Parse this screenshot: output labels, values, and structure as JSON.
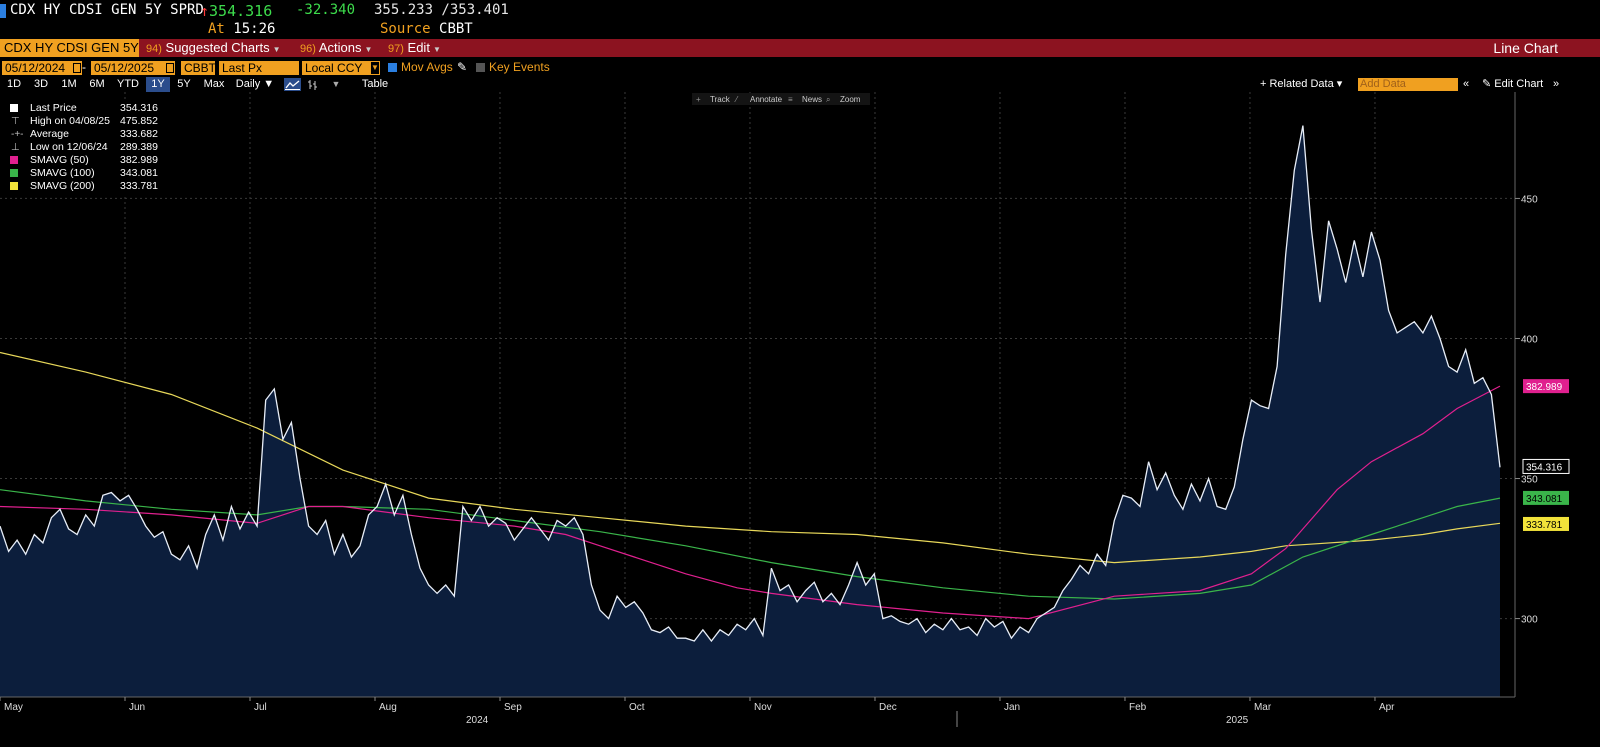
{
  "header": {
    "ticker": "CDX HY CDSI GEN 5Y SPRD",
    "last_arrow": "↑",
    "last_price": "354.316",
    "change": "-32.340",
    "high_low": "355.233 /353.401",
    "at_label": "At",
    "at_time": "15:26",
    "source_label": "Source",
    "source_value": "CBBT"
  },
  "menu": {
    "security": "CDX HY CDSI GEN 5Y",
    "suggested_num": "94)",
    "suggested": "Suggested Charts",
    "actions_num": "96)",
    "actions": "Actions",
    "edit_num": "97)",
    "edit": "Edit",
    "chart_type": "Line Chart"
  },
  "options": {
    "start_date": "05/12/2024",
    "end_date": "05/12/2025",
    "date_sep": "-",
    "pricing_source": "CBBT",
    "field": "Last Px",
    "currency": "Local CCY",
    "mov_avgs_label": "Mov Avgs",
    "key_events_label": "Key Events",
    "colors": {
      "checked": "#2b7fe0",
      "unchecked": "#555555"
    }
  },
  "periods": {
    "items": [
      "1D",
      "3D",
      "1M",
      "6M",
      "YTD",
      "1Y",
      "5Y",
      "Max"
    ],
    "active": "1Y",
    "frequency": "Daily ▼",
    "table_label": "Table",
    "related_data": "+ Related Data ▾",
    "add_data_placeholder": "Add Data",
    "edit_chart": "Edit Chart",
    "chevrons_left": "«",
    "chevrons_right": "»"
  },
  "chart_tools": [
    "Track",
    "Annotate",
    "News",
    "Zoom"
  ],
  "legend": [
    {
      "name": "Last Price",
      "value": "354.316",
      "color": "#ffffff",
      "glyph": ""
    },
    {
      "name": "High on 04/08/25",
      "value": "475.852",
      "color": "",
      "glyph": "⊤"
    },
    {
      "name": "Average",
      "value": "333.682",
      "color": "",
      "glyph": "-+-"
    },
    {
      "name": "Low on 12/06/24",
      "value": "289.389",
      "color": "",
      "glyph": "⊥"
    },
    {
      "name": "SMAVG (50)",
      "value": "382.989",
      "color": "#e0208f",
      "glyph": ""
    },
    {
      "name": "SMAVG (100)",
      "value": "343.081",
      "color": "#3ab54a",
      "glyph": ""
    },
    {
      "name": "SMAVG (200)",
      "value": "333.781",
      "color": "#f2e33a",
      "glyph": ""
    }
  ],
  "chart_data": {
    "type": "line",
    "x_axis_labels": [
      "May",
      "Jun",
      "Jul",
      "Aug",
      "Sep",
      "Oct",
      "Nov",
      "Dec",
      "Jan",
      "Feb",
      "Mar",
      "Apr"
    ],
    "year_labels": [
      "2024",
      "2025"
    ],
    "y_ticks": [
      300,
      350,
      400,
      450
    ],
    "ylim": [
      272,
      488
    ],
    "grid": true,
    "colors": {
      "price_line": "#e8eef8",
      "price_fill": "#0c1e3c",
      "sma50": "#e0208f",
      "sma100": "#3ab54a",
      "sma200": "#e8d85a",
      "grid": "#3a3a3a"
    },
    "end_labels": [
      {
        "value": "382.989",
        "series": "sma50",
        "bg": "#e0208f",
        "fg": "#ffffff"
      },
      {
        "value": "354.316",
        "series": "price",
        "bg": "#000000",
        "fg": "#ffffff",
        "border": "#ffffff"
      },
      {
        "value": "343.081",
        "series": "sma100",
        "bg": "#3ab54a",
        "fg": "#000000"
      },
      {
        "value": "333.781",
        "series": "sma200",
        "bg": "#f2e33a",
        "fg": "#000000"
      }
    ],
    "series": [
      {
        "key": "price",
        "name": "Last Price",
        "points": [
          [
            0,
            333
          ],
          [
            0.1,
            324
          ],
          [
            0.2,
            328
          ],
          [
            0.3,
            323
          ],
          [
            0.4,
            330
          ],
          [
            0.5,
            327
          ],
          [
            0.6,
            336
          ],
          [
            0.7,
            339
          ],
          [
            0.8,
            332
          ],
          [
            0.9,
            330
          ],
          [
            1.0,
            337
          ],
          [
            1.1,
            333
          ],
          [
            1.2,
            344
          ],
          [
            1.3,
            345
          ],
          [
            1.4,
            342
          ],
          [
            1.5,
            344
          ],
          [
            1.6,
            339
          ],
          [
            1.7,
            333
          ],
          [
            1.8,
            329
          ],
          [
            1.9,
            331
          ],
          [
            2.0,
            323
          ],
          [
            2.1,
            321
          ],
          [
            2.2,
            326
          ],
          [
            2.3,
            318
          ],
          [
            2.4,
            330
          ],
          [
            2.5,
            337
          ],
          [
            2.6,
            328
          ],
          [
            2.7,
            340
          ],
          [
            2.8,
            332
          ],
          [
            2.9,
            338
          ],
          [
            3.0,
            333
          ],
          [
            3.1,
            378
          ],
          [
            3.2,
            382
          ],
          [
            3.3,
            364
          ],
          [
            3.4,
            370
          ],
          [
            3.5,
            350
          ],
          [
            3.6,
            333
          ],
          [
            3.7,
            330
          ],
          [
            3.8,
            335
          ],
          [
            3.9,
            323
          ],
          [
            4.0,
            330
          ],
          [
            4.1,
            322
          ],
          [
            4.2,
            326
          ],
          [
            4.3,
            337
          ],
          [
            4.4,
            340
          ],
          [
            4.5,
            348
          ],
          [
            4.6,
            337
          ],
          [
            4.7,
            344
          ],
          [
            4.8,
            330
          ],
          [
            4.9,
            318
          ],
          [
            5.0,
            312
          ],
          [
            5.1,
            309
          ],
          [
            5.2,
            312
          ],
          [
            5.3,
            308
          ],
          [
            5.4,
            340
          ],
          [
            5.5,
            335
          ],
          [
            5.6,
            340
          ],
          [
            5.7,
            333
          ],
          [
            5.8,
            336
          ],
          [
            5.9,
            334
          ],
          [
            6.0,
            328
          ],
          [
            6.1,
            332
          ],
          [
            6.2,
            336
          ],
          [
            6.3,
            332
          ],
          [
            6.4,
            328
          ],
          [
            6.5,
            335
          ],
          [
            6.6,
            333
          ],
          [
            6.7,
            336
          ],
          [
            6.8,
            330
          ],
          [
            6.9,
            312
          ],
          [
            7.0,
            303
          ],
          [
            7.1,
            300
          ],
          [
            7.2,
            308
          ],
          [
            7.3,
            304
          ],
          [
            7.4,
            306
          ],
          [
            7.5,
            302
          ],
          [
            7.6,
            296
          ],
          [
            7.7,
            295
          ],
          [
            7.8,
            297
          ],
          [
            7.9,
            293
          ],
          [
            8.0,
            293
          ],
          [
            8.1,
            292
          ],
          [
            8.2,
            296
          ],
          [
            8.3,
            292
          ],
          [
            8.4,
            296
          ],
          [
            8.5,
            294
          ],
          [
            8.6,
            298
          ],
          [
            8.7,
            296
          ],
          [
            8.8,
            300
          ],
          [
            8.9,
            294
          ],
          [
            9.0,
            318
          ],
          [
            9.1,
            310
          ],
          [
            9.2,
            312
          ],
          [
            9.3,
            306
          ],
          [
            9.4,
            310
          ],
          [
            9.5,
            313
          ],
          [
            9.6,
            306
          ],
          [
            9.7,
            309
          ],
          [
            9.8,
            305
          ],
          [
            9.9,
            312
          ],
          [
            10.0,
            320
          ],
          [
            10.1,
            312
          ],
          [
            10.2,
            316
          ],
          [
            10.3,
            300
          ],
          [
            10.4,
            301
          ],
          [
            10.5,
            299
          ],
          [
            10.6,
            298
          ],
          [
            10.7,
            300
          ],
          [
            10.8,
            295
          ],
          [
            10.9,
            298
          ],
          [
            11.0,
            296
          ],
          [
            11.1,
            300
          ],
          [
            11.2,
            296
          ],
          [
            11.3,
            297
          ],
          [
            11.4,
            294
          ],
          [
            11.5,
            300
          ],
          [
            11.6,
            297
          ],
          [
            11.7,
            299
          ],
          [
            11.8,
            293
          ],
          [
            11.9,
            297
          ],
          [
            12.0,
            295
          ],
          [
            12.1,
            300
          ],
          [
            12.2,
            302
          ],
          [
            12.3,
            304
          ],
          [
            12.4,
            310
          ],
          [
            12.5,
            314
          ],
          [
            12.6,
            319
          ],
          [
            12.7,
            316
          ],
          [
            12.8,
            323
          ],
          [
            12.9,
            319
          ],
          [
            13.0,
            335
          ],
          [
            13.1,
            344
          ],
          [
            13.2,
            343
          ],
          [
            13.3,
            340
          ],
          [
            13.4,
            356
          ],
          [
            13.5,
            346
          ],
          [
            13.6,
            352
          ],
          [
            13.7,
            344
          ],
          [
            13.8,
            339
          ],
          [
            13.9,
            348
          ],
          [
            14.0,
            342
          ],
          [
            14.1,
            350
          ],
          [
            14.2,
            340
          ],
          [
            14.3,
            339
          ],
          [
            14.4,
            347
          ],
          [
            14.5,
            364
          ],
          [
            14.6,
            378
          ],
          [
            14.7,
            376
          ],
          [
            14.8,
            375
          ],
          [
            14.9,
            390
          ],
          [
            15.0,
            430
          ],
          [
            15.1,
            460
          ],
          [
            15.2,
            476
          ],
          [
            15.3,
            439
          ],
          [
            15.4,
            413
          ],
          [
            15.5,
            442
          ],
          [
            15.6,
            432
          ],
          [
            15.7,
            420
          ],
          [
            15.8,
            435
          ],
          [
            15.9,
            422
          ],
          [
            16.0,
            438
          ],
          [
            16.1,
            428
          ],
          [
            16.2,
            410
          ],
          [
            16.3,
            402
          ],
          [
            16.4,
            404
          ],
          [
            16.5,
            406
          ],
          [
            16.6,
            402
          ],
          [
            16.7,
            408
          ],
          [
            16.8,
            400
          ],
          [
            16.9,
            390
          ],
          [
            17.0,
            388
          ],
          [
            17.1,
            396
          ],
          [
            17.2,
            384
          ],
          [
            17.3,
            386
          ],
          [
            17.4,
            380
          ],
          [
            17.5,
            354
          ]
        ]
      },
      {
        "key": "sma50",
        "name": "SMAVG (50)",
        "points": [
          [
            0,
            340
          ],
          [
            1.0,
            339
          ],
          [
            2.0,
            337
          ],
          [
            3.0,
            334
          ],
          [
            3.6,
            340
          ],
          [
            4.0,
            340
          ],
          [
            5.0,
            336
          ],
          [
            6.0,
            333
          ],
          [
            6.6,
            330
          ],
          [
            7.0,
            326
          ],
          [
            8.0,
            316
          ],
          [
            8.6,
            311
          ],
          [
            9.0,
            309
          ],
          [
            10.0,
            305
          ],
          [
            11.0,
            302
          ],
          [
            12.0,
            300
          ],
          [
            13.0,
            308
          ],
          [
            14.0,
            310
          ],
          [
            14.6,
            316
          ],
          [
            15.0,
            325
          ],
          [
            15.6,
            346
          ],
          [
            16.0,
            356
          ],
          [
            16.6,
            366
          ],
          [
            17.0,
            375
          ],
          [
            17.5,
            383
          ]
        ]
      },
      {
        "key": "sma100",
        "name": "SMAVG (100)",
        "points": [
          [
            0,
            346
          ],
          [
            1.0,
            342
          ],
          [
            2.0,
            339
          ],
          [
            3.0,
            337
          ],
          [
            3.6,
            340
          ],
          [
            4.0,
            340
          ],
          [
            5.0,
            339
          ],
          [
            6.0,
            335
          ],
          [
            7.0,
            331
          ],
          [
            8.0,
            326
          ],
          [
            9.0,
            320
          ],
          [
            10.0,
            315
          ],
          [
            11.0,
            311
          ],
          [
            12.0,
            308
          ],
          [
            13.0,
            307
          ],
          [
            14.0,
            309
          ],
          [
            14.6,
            312
          ],
          [
            15.2,
            322
          ],
          [
            16.0,
            330
          ],
          [
            16.6,
            336
          ],
          [
            17.0,
            340
          ],
          [
            17.5,
            343
          ]
        ]
      },
      {
        "key": "sma200",
        "name": "SMAVG (200)",
        "points": [
          [
            0,
            395
          ],
          [
            1.0,
            388
          ],
          [
            2.0,
            380
          ],
          [
            3.0,
            368
          ],
          [
            4.0,
            353
          ],
          [
            5.0,
            343
          ],
          [
            6.0,
            339
          ],
          [
            7.0,
            336
          ],
          [
            8.0,
            333
          ],
          [
            9.0,
            331
          ],
          [
            10.0,
            330
          ],
          [
            11.0,
            327
          ],
          [
            12.0,
            323
          ],
          [
            13.0,
            320
          ],
          [
            14.0,
            322
          ],
          [
            14.6,
            324
          ],
          [
            15.0,
            326
          ],
          [
            16.0,
            328
          ],
          [
            16.6,
            330
          ],
          [
            17.0,
            332
          ],
          [
            17.5,
            334
          ]
        ]
      }
    ]
  }
}
